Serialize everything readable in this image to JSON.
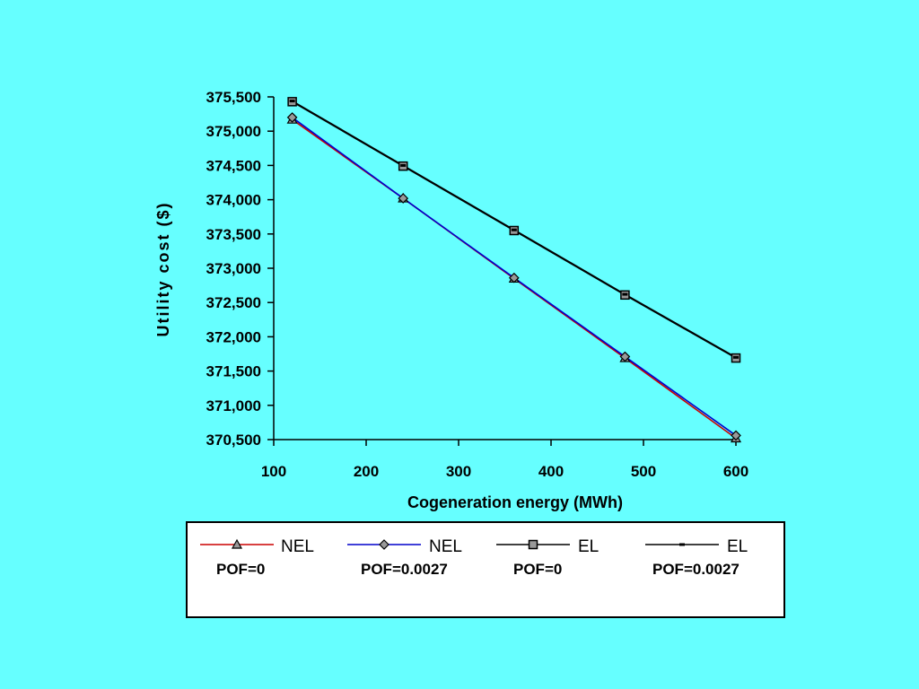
{
  "colors": {
    "background": "#66ffff",
    "nel_pof0": "#cc0000",
    "nel_pof0027": "#0000cc",
    "el_pof0": "#000000",
    "el_pof0027": "#000000"
  },
  "chart_data": {
    "type": "line",
    "title": "",
    "xlabel": "Cogeneration energy (MWh)",
    "ylabel": "Utility cost ($)",
    "xlim": [
      100,
      600
    ],
    "ylim": [
      370500,
      375500
    ],
    "xticks": [
      100,
      200,
      300,
      400,
      500,
      600
    ],
    "yticks": [
      370500,
      371000,
      371500,
      372000,
      372500,
      373000,
      373500,
      374000,
      374500,
      375000,
      375500
    ],
    "xtick_labels": [
      "100",
      "200",
      "300",
      "400",
      "500",
      "600"
    ],
    "ytick_labels": [
      "370,500",
      "371,000",
      "371,500",
      "372,000",
      "372,500",
      "373,000",
      "373,500",
      "374,000",
      "374,500",
      "375,000",
      "375,500"
    ],
    "grid": false,
    "legend_position": "bottom",
    "x": [
      120,
      240,
      360,
      480,
      600
    ],
    "series": [
      {
        "name": "NEL POF=0",
        "label_line1": "NEL",
        "label_line2": "POF=0",
        "marker": "triangle",
        "color": "#cc0000",
        "values": [
          375170,
          374020,
          372850,
          371690,
          370520
        ]
      },
      {
        "name": "NEL POF=0.0027",
        "label_line1": "NEL",
        "label_line2": "POF=0.0027",
        "marker": "diamond",
        "color": "#0000cc",
        "values": [
          375200,
          374020,
          372860,
          371710,
          370560
        ]
      },
      {
        "name": "EL POF=0",
        "label_line1": "EL",
        "label_line2": "POF=0",
        "marker": "square",
        "color": "#000000",
        "values": [
          375430,
          374490,
          373550,
          372610,
          371690
        ]
      },
      {
        "name": "EL POF=0.0027",
        "label_line1": "EL",
        "label_line2": "POF=0.0027",
        "marker": "dash",
        "color": "#000000",
        "values": [
          375440,
          374500,
          373560,
          372620,
          371700
        ]
      }
    ]
  }
}
